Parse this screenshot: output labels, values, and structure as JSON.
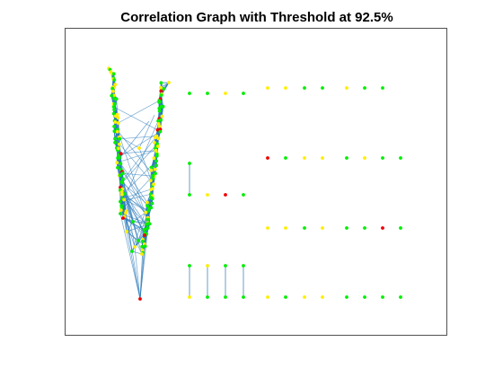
{
  "title": "Correlation Graph with Threshold at 92.5%",
  "colors": {
    "edge": "#2b7bba",
    "green": "#00ee00",
    "yellow": "#ffee00",
    "red": "#ee0000",
    "axes_box": "#262626",
    "background": "#ffffff"
  },
  "graph": {
    "layout": "force-directed",
    "large_component": "two dense vertical node clusters joined by many edges",
    "small_components": [
      {
        "nodes": [
          "green",
          "green"
        ],
        "edges": [
          [
            0,
            1
          ]
        ]
      },
      {
        "nodes": [
          "green",
          "yellow"
        ],
        "edges": [
          [
            0,
            1
          ]
        ]
      },
      {
        "nodes": [
          "yellow",
          "green"
        ],
        "edges": [
          [
            0,
            1
          ]
        ]
      },
      {
        "nodes": [
          "green",
          "green"
        ],
        "edges": [
          [
            0,
            1
          ]
        ]
      },
      {
        "nodes": [
          "green",
          "green"
        ],
        "edges": [
          [
            0,
            1
          ]
        ]
      }
    ],
    "isolated_node_colors": [
      "green",
      "green",
      "yellow",
      "green",
      "yellow",
      "yellow",
      "green",
      "green",
      "yellow",
      "green",
      "green",
      "red",
      "green",
      "yellow",
      "yellow",
      "green",
      "yellow",
      "green",
      "green",
      "yellow",
      "red",
      "green",
      "yellow",
      "yellow",
      "green",
      "yellow",
      "green",
      "green",
      "red",
      "green",
      "yellow",
      "green",
      "yellow",
      "yellow",
      "green",
      "green",
      "green",
      "green"
    ]
  }
}
